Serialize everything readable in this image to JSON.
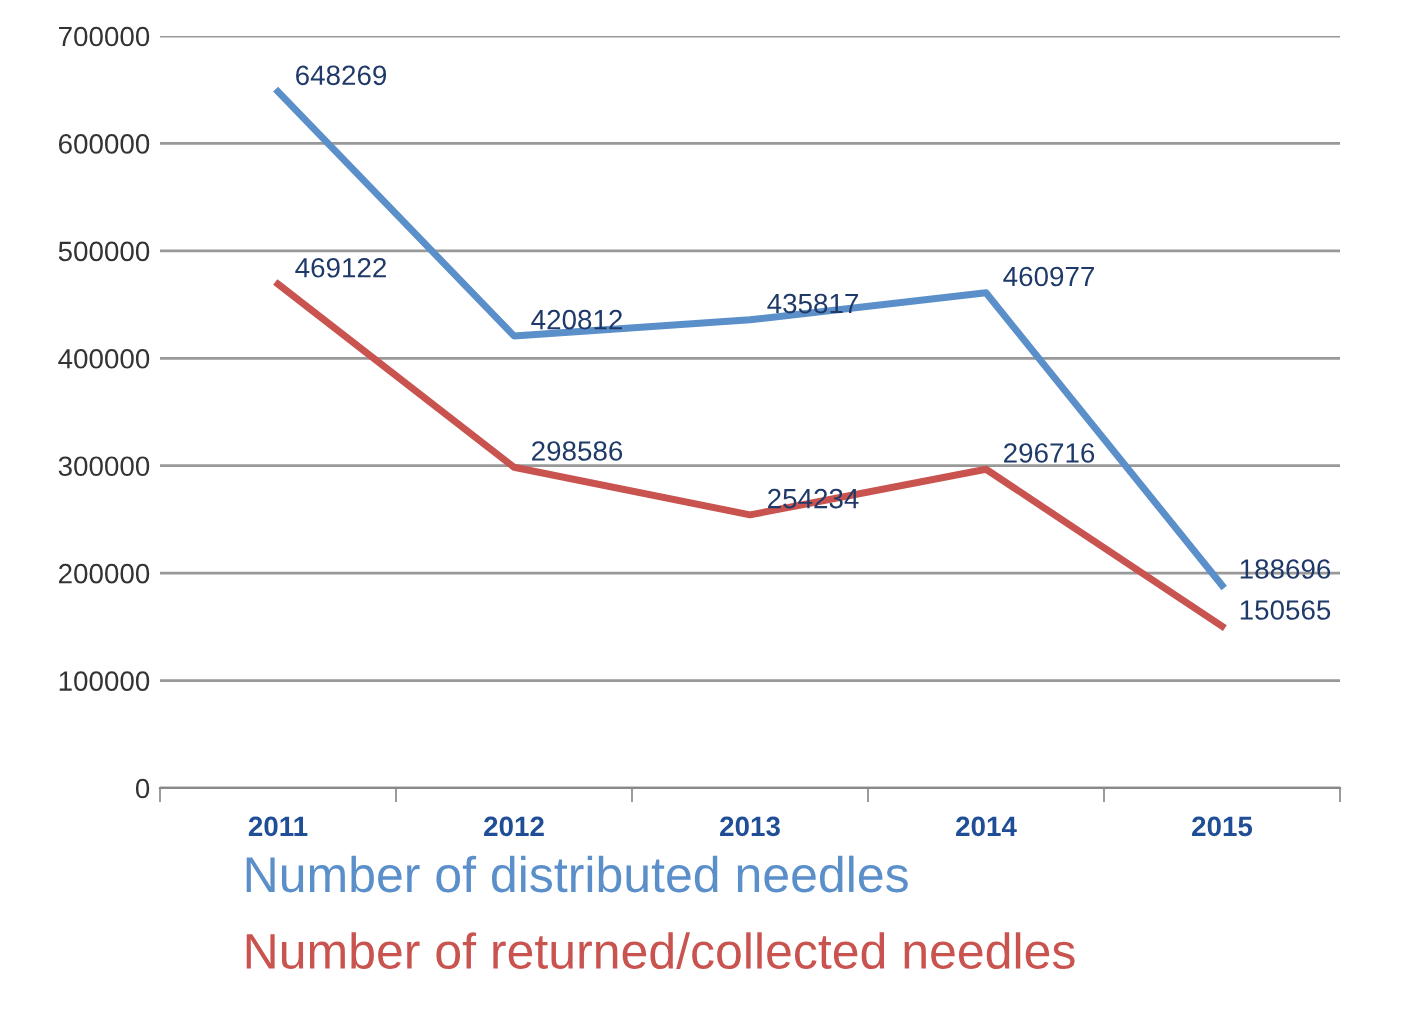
{
  "chart_data": {
    "type": "line",
    "categories": [
      "2011",
      "2012",
      "2013",
      "2014",
      "2015"
    ],
    "series": [
      {
        "name": "Number of distributed needles",
        "color": "#5b8fc9",
        "values": [
          648269,
          420812,
          435817,
          460977,
          188696
        ]
      },
      {
        "name": "Number of returned/collected needles",
        "color": "#c9534f",
        "values": [
          469122,
          298586,
          254234,
          296716,
          150565
        ]
      }
    ],
    "ylim": [
      0,
      700000
    ],
    "yticks": [
      0,
      100000,
      200000,
      300000,
      400000,
      500000,
      600000,
      700000
    ],
    "grid": "y",
    "legend": "bottom",
    "data_labels": true,
    "marker": "none",
    "line_style": "solid"
  }
}
